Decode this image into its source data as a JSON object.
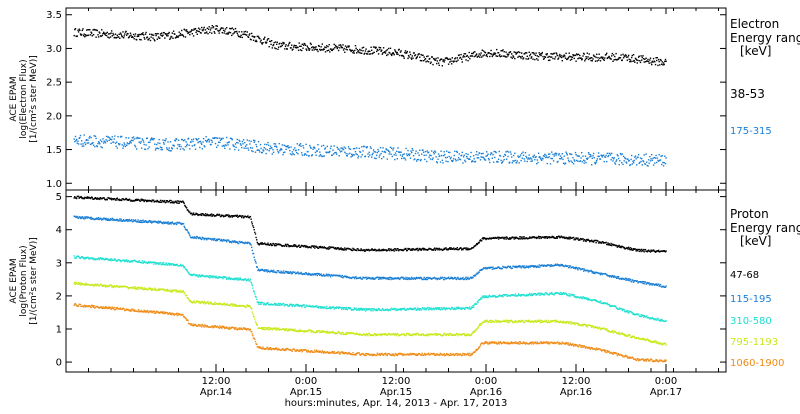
{
  "chart_data": [
    {
      "type": "scatter",
      "title": "",
      "ylabel": [
        "ACE EPAM",
        "log(Electron Flux)",
        "[1/(cm²s ster MeV)]"
      ],
      "ylim": [
        0.9,
        3.6
      ],
      "yticks": [
        "1.0",
        "1.5",
        "2.0",
        "2.5",
        "3.0",
        "3.5"
      ],
      "legend": {
        "placement": "right",
        "title_lines": [
          "Electron",
          "Energy ranges",
          "[keV]"
        ]
      },
      "series": [
        {
          "name": "38-53",
          "color": "#000000",
          "points": [
            {
              "x": "2013-04-13T17:00",
              "y": 3.25
            },
            {
              "x": "2013-04-14T04:00",
              "y": 3.18
            },
            {
              "x": "2013-04-14T12:00",
              "y": 3.3
            },
            {
              "x": "2013-04-14T16:00",
              "y": 3.22
            },
            {
              "x": "2013-04-14T20:00",
              "y": 3.05
            },
            {
              "x": "2013-04-15T06:00",
              "y": 3.0
            },
            {
              "x": "2013-04-15T12:00",
              "y": 2.95
            },
            {
              "x": "2013-04-15T18:00",
              "y": 2.8
            },
            {
              "x": "2013-04-16T00:00",
              "y": 2.95
            },
            {
              "x": "2013-04-16T06:00",
              "y": 2.9
            },
            {
              "x": "2013-04-16T12:00",
              "y": 2.88
            },
            {
              "x": "2013-04-16T18:00",
              "y": 2.88
            },
            {
              "x": "2013-04-17T00:00",
              "y": 2.8
            }
          ]
        },
        {
          "name": "175-315",
          "color": "#1a7fd4",
          "points": [
            {
              "x": "2013-04-13T17:00",
              "y": 1.65
            },
            {
              "x": "2013-04-14T06:00",
              "y": 1.58
            },
            {
              "x": "2013-04-14T12:00",
              "y": 1.62
            },
            {
              "x": "2013-04-14T20:00",
              "y": 1.52
            },
            {
              "x": "2013-04-15T06:00",
              "y": 1.48
            },
            {
              "x": "2013-04-15T12:00",
              "y": 1.45
            },
            {
              "x": "2013-04-15T18:00",
              "y": 1.4
            },
            {
              "x": "2013-04-16T00:00",
              "y": 1.4
            },
            {
              "x": "2013-04-16T12:00",
              "y": 1.38
            },
            {
              "x": "2013-04-17T00:00",
              "y": 1.35
            }
          ]
        }
      ]
    },
    {
      "type": "scatter",
      "title": "",
      "ylabel": [
        "ACE EPAM",
        "log(Proton Flux)",
        "[1/(cm²s ster MeV)]"
      ],
      "ylim": [
        -0.3,
        5.2
      ],
      "yticks": [
        "0",
        "1",
        "2",
        "3",
        "4",
        "5"
      ],
      "xlabel": "hours:minutes, Apr. 14, 2013 - Apr. 17, 2013",
      "xlim": [
        "2013-04-13T16:00",
        "2013-04-17T08:00"
      ],
      "xticks": [
        {
          "x": "2013-04-14T12:00",
          "top": "12:00",
          "bottom": "Apr.14"
        },
        {
          "x": "2013-04-15T00:00",
          "top": "0:00",
          "bottom": "Apr.15"
        },
        {
          "x": "2013-04-15T12:00",
          "top": "12:00",
          "bottom": "Apr.15"
        },
        {
          "x": "2013-04-16T00:00",
          "top": "0:00",
          "bottom": "Apr.16"
        },
        {
          "x": "2013-04-16T12:00",
          "top": "12:00",
          "bottom": "Apr.16"
        },
        {
          "x": "2013-04-17T00:00",
          "top": "0:00",
          "bottom": "Apr.17"
        }
      ],
      "legend": {
        "placement": "right",
        "title_lines": [
          "Proton",
          "Energy ranges",
          "[keV]"
        ]
      },
      "series": [
        {
          "name": "47-68",
          "color": "#000000",
          "points": [
            {
              "x": "2013-04-13T17:00",
              "y": 5.0
            },
            {
              "x": "2013-04-14T07:30",
              "y": 4.85
            },
            {
              "x": "2013-04-14T08:30",
              "y": 4.5
            },
            {
              "x": "2013-04-14T16:30",
              "y": 4.4
            },
            {
              "x": "2013-04-14T17:30",
              "y": 3.6
            },
            {
              "x": "2013-04-15T08:00",
              "y": 3.4
            },
            {
              "x": "2013-04-15T22:00",
              "y": 3.45
            },
            {
              "x": "2013-04-15T23:30",
              "y": 3.75
            },
            {
              "x": "2013-04-16T10:00",
              "y": 3.8
            },
            {
              "x": "2013-04-16T15:00",
              "y": 3.65
            },
            {
              "x": "2013-04-16T20:00",
              "y": 3.4
            },
            {
              "x": "2013-04-17T00:00",
              "y": 3.35
            }
          ]
        },
        {
          "name": "115-195",
          "color": "#1a7fd4",
          "points": [
            {
              "x": "2013-04-13T17:00",
              "y": 4.4
            },
            {
              "x": "2013-04-14T07:30",
              "y": 4.2
            },
            {
              "x": "2013-04-14T08:30",
              "y": 3.8
            },
            {
              "x": "2013-04-14T16:30",
              "y": 3.6
            },
            {
              "x": "2013-04-14T17:30",
              "y": 2.8
            },
            {
              "x": "2013-04-15T08:00",
              "y": 2.55
            },
            {
              "x": "2013-04-15T22:00",
              "y": 2.55
            },
            {
              "x": "2013-04-15T23:30",
              "y": 2.85
            },
            {
              "x": "2013-04-16T10:00",
              "y": 2.95
            },
            {
              "x": "2013-04-16T15:00",
              "y": 2.7
            },
            {
              "x": "2013-04-16T20:00",
              "y": 2.45
            },
            {
              "x": "2013-04-17T00:00",
              "y": 2.3
            }
          ]
        },
        {
          "name": "310-580",
          "color": "#20e0d0",
          "points": [
            {
              "x": "2013-04-13T17:00",
              "y": 3.2
            },
            {
              "x": "2013-04-14T07:30",
              "y": 2.95
            },
            {
              "x": "2013-04-14T08:30",
              "y": 2.65
            },
            {
              "x": "2013-04-14T16:30",
              "y": 2.5
            },
            {
              "x": "2013-04-14T17:30",
              "y": 1.8
            },
            {
              "x": "2013-04-15T08:00",
              "y": 1.6
            },
            {
              "x": "2013-04-15T22:00",
              "y": 1.65
            },
            {
              "x": "2013-04-15T23:30",
              "y": 2.0
            },
            {
              "x": "2013-04-16T10:00",
              "y": 2.1
            },
            {
              "x": "2013-04-16T15:00",
              "y": 1.85
            },
            {
              "x": "2013-04-16T20:00",
              "y": 1.45
            },
            {
              "x": "2013-04-17T00:00",
              "y": 1.25
            }
          ]
        },
        {
          "name": "795-1193",
          "color": "#c8e81c",
          "points": [
            {
              "x": "2013-04-13T17:00",
              "y": 2.4
            },
            {
              "x": "2013-04-14T07:30",
              "y": 2.15
            },
            {
              "x": "2013-04-14T08:30",
              "y": 1.85
            },
            {
              "x": "2013-04-14T16:30",
              "y": 1.7
            },
            {
              "x": "2013-04-14T17:30",
              "y": 1.05
            },
            {
              "x": "2013-04-15T08:00",
              "y": 0.85
            },
            {
              "x": "2013-04-15T22:00",
              "y": 0.85
            },
            {
              "x": "2013-04-15T23:30",
              "y": 1.25
            },
            {
              "x": "2013-04-16T10:00",
              "y": 1.25
            },
            {
              "x": "2013-04-16T15:00",
              "y": 1.05
            },
            {
              "x": "2013-04-16T20:00",
              "y": 0.75
            },
            {
              "x": "2013-04-17T00:00",
              "y": 0.55
            }
          ]
        },
        {
          "name": "1060-1900",
          "color": "#f08c18",
          "points": [
            {
              "x": "2013-04-13T17:00",
              "y": 1.75
            },
            {
              "x": "2013-04-14T07:30",
              "y": 1.45
            },
            {
              "x": "2013-04-14T08:30",
              "y": 1.15
            },
            {
              "x": "2013-04-14T16:30",
              "y": 1.0
            },
            {
              "x": "2013-04-14T17:30",
              "y": 0.45
            },
            {
              "x": "2013-04-15T08:00",
              "y": 0.25
            },
            {
              "x": "2013-04-15T22:00",
              "y": 0.25
            },
            {
              "x": "2013-04-15T23:30",
              "y": 0.6
            },
            {
              "x": "2013-04-16T10:00",
              "y": 0.6
            },
            {
              "x": "2013-04-16T15:00",
              "y": 0.4
            },
            {
              "x": "2013-04-16T20:00",
              "y": 0.1
            },
            {
              "x": "2013-04-17T00:00",
              "y": 0.05
            }
          ]
        }
      ]
    }
  ]
}
